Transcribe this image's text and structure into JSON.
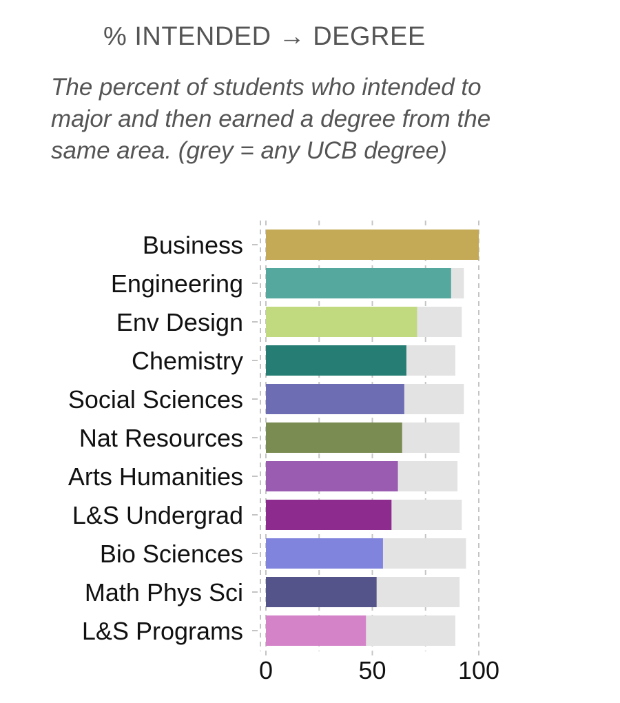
{
  "chart_data": {
    "type": "bar",
    "orientation": "horizontal",
    "title": "% INTENDED → DEGREE",
    "subtitle": "The percent of students who intended to major and then earned a degree from the same area. (grey = any UCB degree)",
    "categories": [
      "Business",
      "Engineering",
      "Env Design",
      "Chemistry",
      "Social Sciences",
      "Nat Resources",
      "Arts Humanities",
      "L&S Undergrad",
      "Bio Sciences",
      "Math Phys Sci",
      "L&S Programs"
    ],
    "series": [
      {
        "name": "same area",
        "values": [
          100,
          87,
          71,
          66,
          65,
          64,
          62,
          59,
          55,
          52,
          47
        ],
        "colors": [
          "#c4aa56",
          "#55a89e",
          "#c1d97f",
          "#267d73",
          "#6d6db3",
          "#7b8c52",
          "#9a5cb0",
          "#8e2b8f",
          "#8184dc",
          "#54548a",
          "#d483c9"
        ]
      },
      {
        "name": "any UCB degree",
        "values": [
          100,
          93,
          92,
          89,
          93,
          91,
          90,
          92,
          94,
          91,
          89
        ],
        "color": "#e3e3e3"
      }
    ],
    "xticks": [
      0,
      50,
      100
    ],
    "xlim": [
      0,
      100
    ],
    "grid": "vertical dashed"
  }
}
